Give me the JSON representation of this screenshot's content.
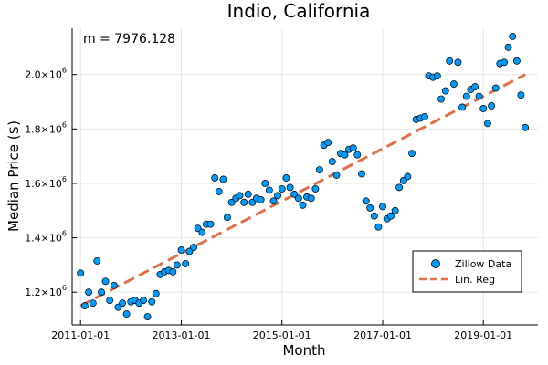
{
  "chart_data": {
    "type": "scatter",
    "title": "Indio, California",
    "annotation": "m = 7976.128",
    "xlabel": "Month",
    "ylabel": "Median Price ($)",
    "x_ticks": [
      "2011-01-01",
      "2013-01-01",
      "2015-01-01",
      "2017-01-01",
      "2019-01-01"
    ],
    "y_ticks": [
      {
        "value": 1200000,
        "base": "1.2×10",
        "exp": "6"
      },
      {
        "value": 1400000,
        "base": "1.4×10",
        "exp": "6"
      },
      {
        "value": 1600000,
        "base": "1.6×10",
        "exp": "6"
      },
      {
        "value": 1800000,
        "base": "1.8×10",
        "exp": "6"
      },
      {
        "value": 2000000,
        "base": "2.0×10",
        "exp": "6"
      }
    ],
    "xlim": [
      "2010-11-01",
      "2020-02-01"
    ],
    "ylim": [
      1080000,
      2170000
    ],
    "grid": true,
    "legend_position": "bottom-right",
    "colors": {
      "scatter": "#009af9",
      "line": "#e26f46"
    },
    "series": [
      {
        "name": "Zillow Data",
        "kind": "scatter",
        "points": [
          [
            "2011-01-01",
            1270000
          ],
          [
            "2011-02-01",
            1150000
          ],
          [
            "2011-03-01",
            1200000
          ],
          [
            "2011-04-01",
            1160000
          ],
          [
            "2011-05-01",
            1315000
          ],
          [
            "2011-06-01",
            1200000
          ],
          [
            "2011-07-01",
            1240000
          ],
          [
            "2011-08-01",
            1170000
          ],
          [
            "2011-09-01",
            1225000
          ],
          [
            "2011-10-01",
            1145000
          ],
          [
            "2011-11-01",
            1160000
          ],
          [
            "2011-12-01",
            1120000
          ],
          [
            "2012-01-01",
            1165000
          ],
          [
            "2012-02-01",
            1170000
          ],
          [
            "2012-03-01",
            1160000
          ],
          [
            "2012-04-01",
            1170000
          ],
          [
            "2012-05-01",
            1110000
          ],
          [
            "2012-06-01",
            1165000
          ],
          [
            "2012-07-01",
            1195000
          ],
          [
            "2012-08-01",
            1265000
          ],
          [
            "2012-09-01",
            1275000
          ],
          [
            "2012-10-01",
            1280000
          ],
          [
            "2012-11-01",
            1275000
          ],
          [
            "2012-12-01",
            1300000
          ],
          [
            "2013-01-01",
            1355000
          ],
          [
            "2013-02-01",
            1305000
          ],
          [
            "2013-03-01",
            1350000
          ],
          [
            "2013-04-01",
            1365000
          ],
          [
            "2013-05-01",
            1435000
          ],
          [
            "2013-06-01",
            1420000
          ],
          [
            "2013-07-01",
            1450000
          ],
          [
            "2013-08-01",
            1450000
          ],
          [
            "2013-09-01",
            1620000
          ],
          [
            "2013-10-01",
            1570000
          ],
          [
            "2013-11-01",
            1615000
          ],
          [
            "2013-12-01",
            1475000
          ],
          [
            "2014-01-01",
            1530000
          ],
          [
            "2014-02-01",
            1545000
          ],
          [
            "2014-03-01",
            1555000
          ],
          [
            "2014-04-01",
            1530000
          ],
          [
            "2014-05-01",
            1560000
          ],
          [
            "2014-06-01",
            1530000
          ],
          [
            "2014-07-01",
            1545000
          ],
          [
            "2014-08-01",
            1540000
          ],
          [
            "2014-09-01",
            1600000
          ],
          [
            "2014-10-01",
            1575000
          ],
          [
            "2014-11-01",
            1535000
          ],
          [
            "2014-12-01",
            1555000
          ],
          [
            "2015-01-01",
            1580000
          ],
          [
            "2015-02-01",
            1620000
          ],
          [
            "2015-03-01",
            1585000
          ],
          [
            "2015-04-01",
            1560000
          ],
          [
            "2015-05-01",
            1545000
          ],
          [
            "2015-06-01",
            1520000
          ],
          [
            "2015-07-01",
            1550000
          ],
          [
            "2015-08-01",
            1545000
          ],
          [
            "2015-09-01",
            1580000
          ],
          [
            "2015-10-01",
            1650000
          ],
          [
            "2015-11-01",
            1740000
          ],
          [
            "2015-12-01",
            1750000
          ],
          [
            "2016-01-01",
            1680000
          ],
          [
            "2016-02-01",
            1630000
          ],
          [
            "2016-03-01",
            1710000
          ],
          [
            "2016-04-01",
            1705000
          ],
          [
            "2016-05-01",
            1725000
          ],
          [
            "2016-06-01",
            1730000
          ],
          [
            "2016-07-01",
            1705000
          ],
          [
            "2016-08-01",
            1635000
          ],
          [
            "2016-09-01",
            1535000
          ],
          [
            "2016-10-01",
            1510000
          ],
          [
            "2016-11-01",
            1480000
          ],
          [
            "2016-12-01",
            1440000
          ],
          [
            "2017-01-01",
            1515000
          ],
          [
            "2017-02-01",
            1470000
          ],
          [
            "2017-03-01",
            1480000
          ],
          [
            "2017-04-01",
            1500000
          ],
          [
            "2017-05-01",
            1585000
          ],
          [
            "2017-06-01",
            1610000
          ],
          [
            "2017-07-01",
            1625000
          ],
          [
            "2017-08-01",
            1710000
          ],
          [
            "2017-09-01",
            1835000
          ],
          [
            "2017-10-01",
            1840000
          ],
          [
            "2017-11-01",
            1845000
          ],
          [
            "2017-12-01",
            1995000
          ],
          [
            "2018-01-01",
            1990000
          ],
          [
            "2018-02-01",
            1995000
          ],
          [
            "2018-03-01",
            1910000
          ],
          [
            "2018-04-01",
            1940000
          ],
          [
            "2018-05-01",
            2050000
          ],
          [
            "2018-06-01",
            1965000
          ],
          [
            "2018-07-01",
            2045000
          ],
          [
            "2018-08-01",
            1880000
          ],
          [
            "2018-09-01",
            1920000
          ],
          [
            "2018-10-01",
            1945000
          ],
          [
            "2018-11-01",
            1955000
          ],
          [
            "2018-12-01",
            1920000
          ],
          [
            "2019-01-01",
            1875000
          ],
          [
            "2019-02-01",
            1820000
          ],
          [
            "2019-03-01",
            1885000
          ],
          [
            "2019-04-01",
            1950000
          ],
          [
            "2019-05-01",
            2040000
          ],
          [
            "2019-06-01",
            2045000
          ],
          [
            "2019-07-01",
            2100000
          ],
          [
            "2019-08-01",
            2140000
          ],
          [
            "2019-09-01",
            2050000
          ],
          [
            "2019-10-01",
            1925000
          ],
          [
            "2019-11-01",
            1805000
          ]
        ]
      },
      {
        "name": "Lin. Reg",
        "kind": "line",
        "points": [
          [
            "2011-01-01",
            1150000
          ],
          [
            "2019-11-01",
            2000000
          ]
        ]
      }
    ]
  }
}
